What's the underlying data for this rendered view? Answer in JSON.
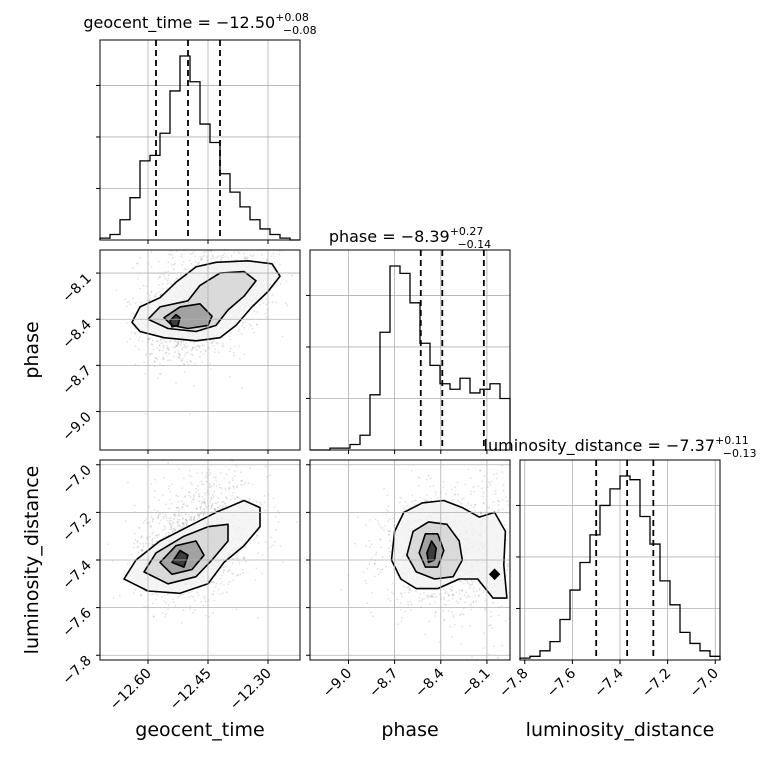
{
  "chart_data": {
    "type": "corner",
    "grid": true,
    "colors": {
      "line": "#000000",
      "grid": "#b0b0b0",
      "scatter": "#000000"
    },
    "parameters": [
      {
        "name": "geocent_time",
        "label": "geocent_time",
        "range": [
          -12.72,
          -12.22
        ],
        "ticks": [
          -12.6,
          -12.45,
          -12.3
        ],
        "tick_labels": [
          "−12.60",
          "−12.45",
          "−12.30"
        ],
        "title": {
          "main": "geocent_time = −12.50",
          "plus": "+0.08",
          "minus": "−0.08"
        },
        "median": -12.5,
        "q_low": -12.58,
        "q_high": -12.42,
        "hist": [
          0.01,
          0.03,
          0.11,
          0.23,
          0.43,
          0.46,
          0.58,
          0.81,
          1.0,
          0.86,
          0.63,
          0.53,
          0.36,
          0.26,
          0.18,
          0.11,
          0.06,
          0.03,
          0.01,
          0.0
        ]
      },
      {
        "name": "phase",
        "label": "phase",
        "range": [
          -9.25,
          -7.95
        ],
        "ticks": [
          -9.0,
          -8.7,
          -8.4,
          -8.1
        ],
        "tick_labels": [
          "−9.0",
          "−8.7",
          "−8.4",
          "−8.1"
        ],
        "title": {
          "main": "phase = −8.39",
          "plus": "+0.27",
          "minus": "−0.14"
        },
        "median": -8.39,
        "q_low": -8.53,
        "q_high": -8.12,
        "hist": [
          0.0,
          0.0,
          0.01,
          0.01,
          0.03,
          0.08,
          0.3,
          0.64,
          1.0,
          0.96,
          0.8,
          0.58,
          0.46,
          0.36,
          0.33,
          0.39,
          0.31,
          0.33,
          0.36,
          0.28
        ]
      },
      {
        "name": "luminosity_distance",
        "label": "luminosity_distance",
        "range": [
          -7.82,
          -6.98
        ],
        "ticks": [
          -7.8,
          -7.6,
          -7.4,
          -7.2,
          -7.0
        ],
        "tick_labels": [
          "−7.8",
          "−7.6",
          "−7.4",
          "−7.2",
          "−7.0"
        ],
        "title": {
          "main": "luminosity_distance = −7.37",
          "plus": "+0.11",
          "minus": "−0.13"
        },
        "median": -7.37,
        "q_low": -7.5,
        "q_high": -7.26,
        "hist": [
          0.01,
          0.02,
          0.05,
          0.1,
          0.22,
          0.38,
          0.53,
          0.68,
          0.84,
          0.93,
          1.0,
          0.98,
          0.78,
          0.63,
          0.43,
          0.3,
          0.15,
          0.09,
          0.05,
          0.02
        ]
      }
    ],
    "pairs": [
      {
        "x": "geocent_time",
        "y": "phase",
        "blobs": [
          {
            "cx": -12.53,
            "cy": -8.43,
            "sx": 0.035,
            "sy": 0.1,
            "w": 0.4
          },
          {
            "cx": -12.46,
            "cy": -8.26,
            "sx": 0.05,
            "sy": 0.14,
            "w": 0.35
          },
          {
            "cx": -12.38,
            "cy": -8.15,
            "sx": 0.04,
            "sy": 0.09,
            "w": 0.25
          }
        ],
        "contours": [
          [
            [
              -12.64,
              -8.42
            ],
            [
              -12.62,
              -8.32
            ],
            [
              -12.57,
              -8.26
            ],
            [
              -12.53,
              -8.16
            ],
            [
              -12.48,
              -8.06
            ],
            [
              -12.43,
              -8.03
            ],
            [
              -12.35,
              -8.02
            ],
            [
              -12.29,
              -8.04
            ],
            [
              -12.27,
              -8.12
            ],
            [
              -12.3,
              -8.22
            ],
            [
              -12.34,
              -8.32
            ],
            [
              -12.38,
              -8.44
            ],
            [
              -12.42,
              -8.52
            ],
            [
              -12.48,
              -8.54
            ],
            [
              -12.56,
              -8.52
            ],
            [
              -12.62,
              -8.48
            ]
          ],
          [
            [
              -12.6,
              -8.4
            ],
            [
              -12.57,
              -8.32
            ],
            [
              -12.5,
              -8.28
            ],
            [
              -12.47,
              -8.18
            ],
            [
              -12.42,
              -8.1
            ],
            [
              -12.36,
              -8.09
            ],
            [
              -12.33,
              -8.15
            ],
            [
              -12.36,
              -8.25
            ],
            [
              -12.4,
              -8.34
            ],
            [
              -12.43,
              -8.44
            ],
            [
              -12.48,
              -8.48
            ],
            [
              -12.55,
              -8.46
            ]
          ],
          [
            [
              -12.56,
              -8.39
            ],
            [
              -12.52,
              -8.32
            ],
            [
              -12.47,
              -8.3
            ],
            [
              -12.44,
              -8.38
            ],
            [
              -12.45,
              -8.44
            ],
            [
              -12.5,
              -8.46
            ],
            [
              -12.54,
              -8.44
            ]
          ],
          [
            [
              -12.545,
              -8.41
            ],
            [
              -12.53,
              -8.37
            ],
            [
              -12.52,
              -8.39
            ],
            [
              -12.525,
              -8.44
            ],
            [
              -12.54,
              -8.45
            ]
          ]
        ]
      },
      {
        "x": "geocent_time",
        "y": "luminosity_distance",
        "blobs": [
          {
            "cx": -12.52,
            "cy": -7.38,
            "sx": 0.04,
            "sy": 0.07,
            "w": 0.55
          },
          {
            "cx": -12.44,
            "cy": -7.26,
            "sx": 0.05,
            "sy": 0.08,
            "w": 0.45
          }
        ],
        "contours": [
          [
            [
              -12.66,
              -7.48
            ],
            [
              -12.63,
              -7.4
            ],
            [
              -12.57,
              -7.32
            ],
            [
              -12.5,
              -7.26
            ],
            [
              -12.43,
              -7.2
            ],
            [
              -12.36,
              -7.15
            ],
            [
              -12.32,
              -7.18
            ],
            [
              -12.32,
              -7.26
            ],
            [
              -12.36,
              -7.34
            ],
            [
              -12.41,
              -7.41
            ],
            [
              -12.45,
              -7.5
            ],
            [
              -12.52,
              -7.54
            ],
            [
              -12.6,
              -7.53
            ]
          ],
          [
            [
              -12.61,
              -7.45
            ],
            [
              -12.58,
              -7.37
            ],
            [
              -12.51,
              -7.3
            ],
            [
              -12.45,
              -7.26
            ],
            [
              -12.4,
              -7.25
            ],
            [
              -12.4,
              -7.32
            ],
            [
              -12.44,
              -7.4
            ],
            [
              -12.48,
              -7.47
            ],
            [
              -12.55,
              -7.5
            ]
          ],
          [
            [
              -12.57,
              -7.41
            ],
            [
              -12.53,
              -7.34
            ],
            [
              -12.48,
              -7.32
            ],
            [
              -12.46,
              -7.38
            ],
            [
              -12.49,
              -7.44
            ],
            [
              -12.54,
              -7.46
            ]
          ],
          [
            [
              -12.54,
              -7.41
            ],
            [
              -12.52,
              -7.36
            ],
            [
              -12.5,
              -7.38
            ],
            [
              -12.51,
              -7.43
            ]
          ]
        ]
      },
      {
        "x": "phase",
        "y": "luminosity_distance",
        "blobs": [
          {
            "cx": -8.44,
            "cy": -7.36,
            "sx": 0.12,
            "sy": 0.08,
            "w": 0.8
          },
          {
            "cx": -8.1,
            "cy": -7.34,
            "sx": 0.08,
            "sy": 0.12,
            "w": 0.2
          }
        ],
        "contours": [
          [
            [
              -8.72,
              -7.4
            ],
            [
              -8.7,
              -7.28
            ],
            [
              -8.64,
              -7.2
            ],
            [
              -8.52,
              -7.16
            ],
            [
              -8.38,
              -7.15
            ],
            [
              -8.26,
              -7.18
            ],
            [
              -8.15,
              -7.22
            ],
            [
              -8.05,
              -7.2
            ],
            [
              -7.98,
              -7.28
            ],
            [
              -7.99,
              -7.42
            ],
            [
              -7.97,
              -7.56
            ],
            [
              -8.06,
              -7.56
            ],
            [
              -8.16,
              -7.48
            ],
            [
              -8.28,
              -7.48
            ],
            [
              -8.42,
              -7.52
            ],
            [
              -8.56,
              -7.52
            ],
            [
              -8.66,
              -7.48
            ]
          ],
          [
            [
              -8.62,
              -7.38
            ],
            [
              -8.58,
              -7.28
            ],
            [
              -8.48,
              -7.24
            ],
            [
              -8.36,
              -7.25
            ],
            [
              -8.28,
              -7.32
            ],
            [
              -8.26,
              -7.4
            ],
            [
              -8.32,
              -7.47
            ],
            [
              -8.44,
              -7.48
            ],
            [
              -8.56,
              -7.45
            ]
          ],
          [
            [
              -8.54,
              -7.37
            ],
            [
              -8.5,
              -7.29
            ],
            [
              -8.42,
              -7.29
            ],
            [
              -8.38,
              -7.36
            ],
            [
              -8.42,
              -7.43
            ],
            [
              -8.5,
              -7.43
            ]
          ],
          [
            [
              -8.49,
              -7.37
            ],
            [
              -8.46,
              -7.32
            ],
            [
              -8.43,
              -7.35
            ],
            [
              -8.44,
              -7.4
            ],
            [
              -8.48,
              -7.41
            ]
          ]
        ],
        "islands": [
          [
            [
              -8.08,
              -7.46
            ],
            [
              -8.05,
              -7.44
            ],
            [
              -8.02,
              -7.46
            ],
            [
              -8.05,
              -7.48
            ]
          ]
        ]
      }
    ]
  }
}
